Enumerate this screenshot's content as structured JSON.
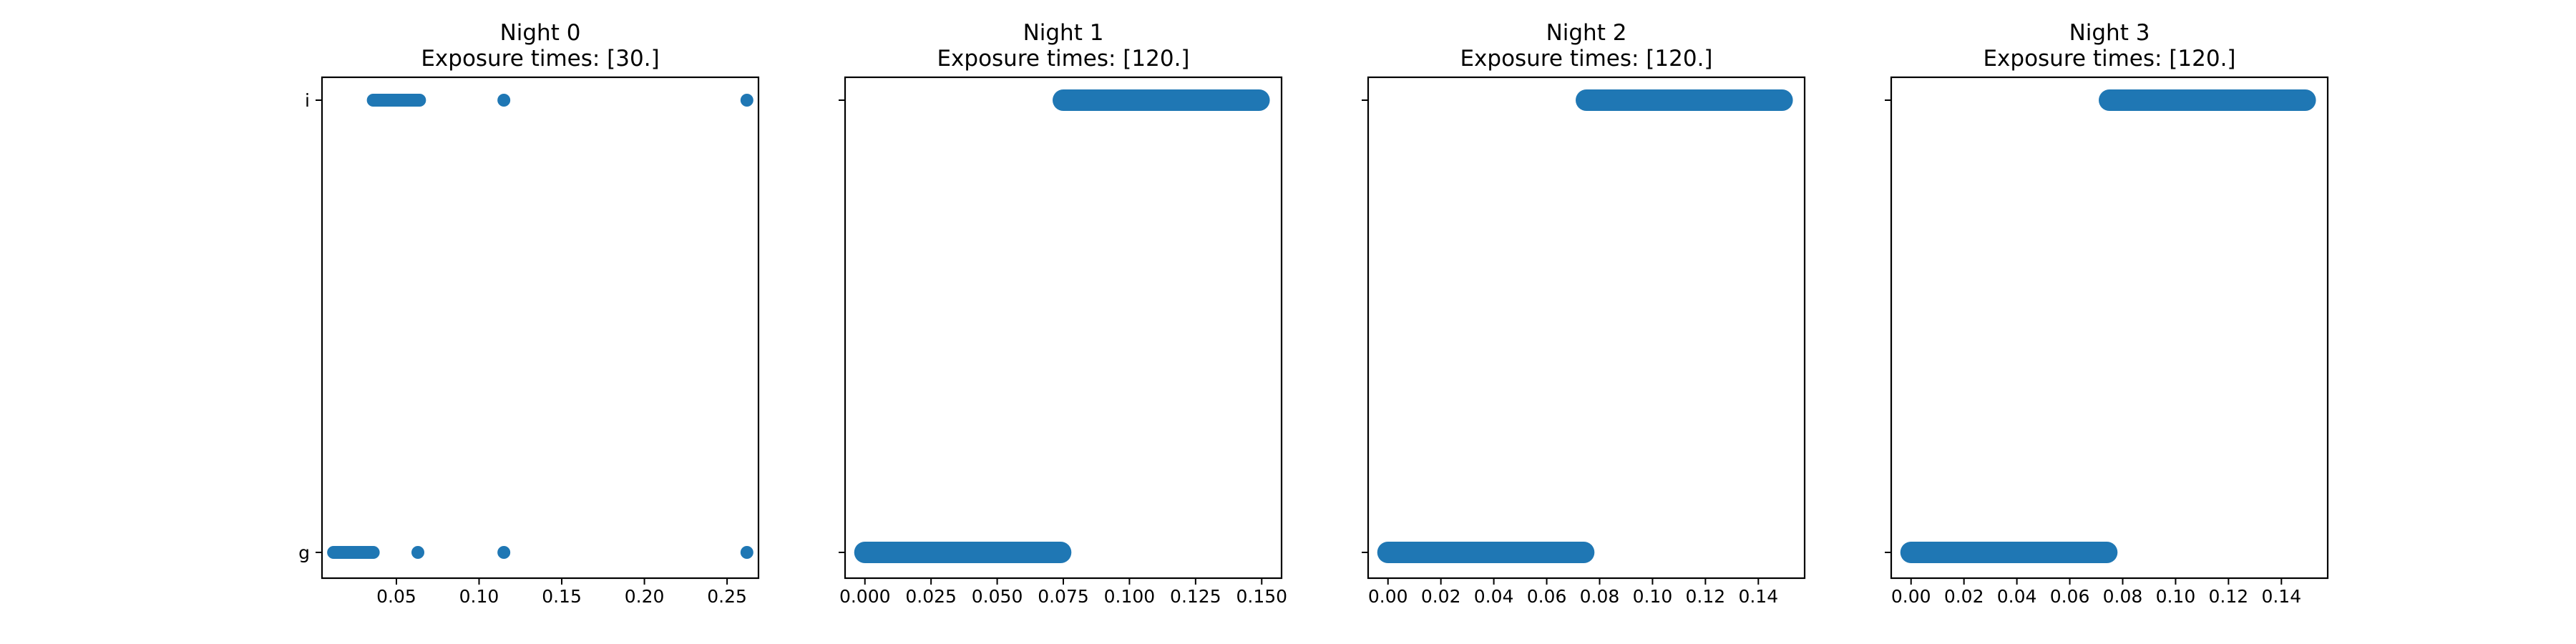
{
  "chart_data": [
    {
      "type": "scatter",
      "title": "Night 0",
      "subtitle": "Exposure times: [30.]",
      "xlim": [
        0.005,
        0.269
      ],
      "xticks": [
        0.05,
        0.1,
        0.15,
        0.2,
        0.25
      ],
      "xtick_labels": [
        "0.05",
        "0.10",
        "0.15",
        "0.20",
        "0.25"
      ],
      "yticks": [
        "g",
        "i"
      ],
      "show_ytick_labels": true,
      "marker_size": "small",
      "color": "#1f77b4",
      "points": [
        {
          "y": "g",
          "x_range": [
            0.012,
            0.036
          ]
        },
        {
          "y": "g",
          "x": 0.063
        },
        {
          "y": "g",
          "x": 0.115
        },
        {
          "y": "g",
          "x": 0.262
        },
        {
          "y": "i",
          "x_range": [
            0.036,
            0.064
          ]
        },
        {
          "y": "i",
          "x": 0.115
        },
        {
          "y": "i",
          "x": 0.262
        }
      ]
    },
    {
      "type": "scatter",
      "title": "Night 1",
      "subtitle": "Exposure times: [120.]",
      "xlim": [
        -0.0075,
        0.1575
      ],
      "xticks": [
        0.0,
        0.025,
        0.05,
        0.075,
        0.1,
        0.125,
        0.15
      ],
      "xtick_labels": [
        "0.000",
        "0.025",
        "0.050",
        "0.075",
        "0.100",
        "0.125",
        "0.150"
      ],
      "yticks": [
        "g",
        "i"
      ],
      "show_ytick_labels": false,
      "marker_size": "large",
      "color": "#1f77b4",
      "points": [
        {
          "y": "g",
          "x_range": [
            0.0,
            0.074
          ]
        },
        {
          "y": "i",
          "x_range": [
            0.075,
            0.149
          ]
        }
      ]
    },
    {
      "type": "scatter",
      "title": "Night 2",
      "subtitle": "Exposure times: [120.]",
      "xlim": [
        -0.0075,
        0.1575
      ],
      "xticks": [
        0.0,
        0.02,
        0.04,
        0.06,
        0.08,
        0.1,
        0.12,
        0.14
      ],
      "xtick_labels": [
        "0.00",
        "0.02",
        "0.04",
        "0.06",
        "0.08",
        "0.10",
        "0.12",
        "0.14"
      ],
      "yticks": [
        "g",
        "i"
      ],
      "show_ytick_labels": false,
      "marker_size": "large",
      "color": "#1f77b4",
      "points": [
        {
          "y": "g",
          "x_range": [
            0.0,
            0.074
          ]
        },
        {
          "y": "i",
          "x_range": [
            0.075,
            0.149
          ]
        }
      ]
    },
    {
      "type": "scatter",
      "title": "Night 3",
      "subtitle": "Exposure times: [120.]",
      "xlim": [
        -0.0075,
        0.1575
      ],
      "xticks": [
        0.0,
        0.02,
        0.04,
        0.06,
        0.08,
        0.1,
        0.12,
        0.14
      ],
      "xtick_labels": [
        "0.00",
        "0.02",
        "0.04",
        "0.06",
        "0.08",
        "0.10",
        "0.12",
        "0.14"
      ],
      "yticks": [
        "g",
        "i"
      ],
      "show_ytick_labels": false,
      "marker_size": "large",
      "color": "#1f77b4",
      "points": [
        {
          "y": "g",
          "x_range": [
            0.0,
            0.074
          ]
        },
        {
          "y": "i",
          "x_range": [
            0.075,
            0.149
          ]
        }
      ]
    }
  ]
}
